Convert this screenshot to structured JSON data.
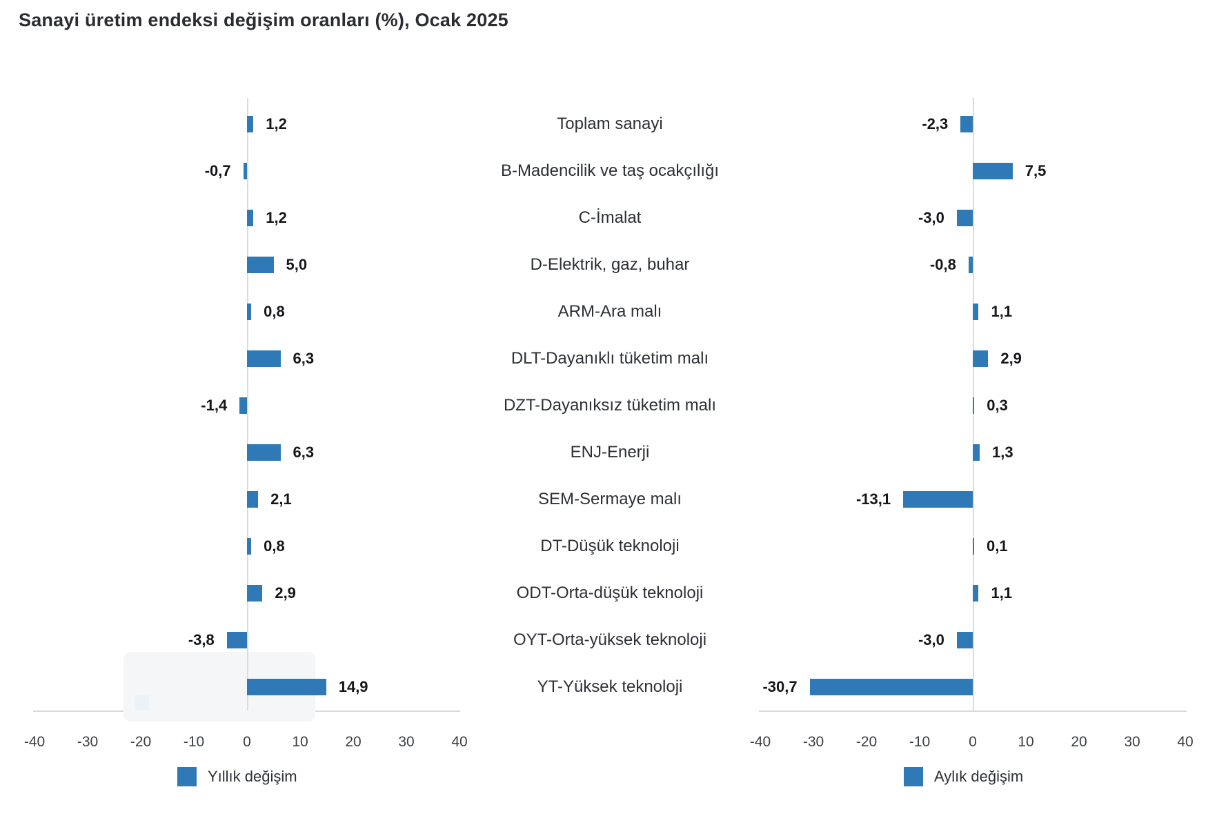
{
  "title": "Sanayi üretim endeksi değişim oranları (%), Ocak 2025",
  "chart_data": {
    "type": "bar",
    "orientation": "horizontal",
    "categories": [
      "Toplam sanayi",
      "B-Madencilik ve taş ocakçılığı",
      "C-İmalat",
      "D-Elektrik, gaz, buhar",
      "ARM-Ara malı",
      "DLT-Dayanıklı tüketim malı",
      "DZT-Dayanıksız tüketim malı",
      "ENJ-Enerji",
      "SEM-Sermaye malı",
      "DT-Düşük teknoloji",
      "ODT-Orta-düşük teknoloji",
      "OYT-Orta-yüksek teknoloji",
      "YT-Yüksek teknoloji"
    ],
    "series": [
      {
        "name": "Yıllık değişim",
        "values": [
          1.2,
          -0.7,
          1.2,
          5.0,
          0.8,
          6.3,
          -1.4,
          6.3,
          2.1,
          0.8,
          2.9,
          -3.8,
          14.9
        ],
        "labels": [
          "1,2",
          "-0,7",
          "1,2",
          "5,0",
          "0,8",
          "6,3",
          "-1,4",
          "6,3",
          "2,1",
          "0,8",
          "2,9",
          "-3,8",
          "14,9"
        ]
      },
      {
        "name": "Aylık değişim",
        "values": [
          -2.3,
          7.5,
          -3.0,
          -0.8,
          1.1,
          2.9,
          0.3,
          1.3,
          -13.1,
          0.1,
          1.1,
          -3.0,
          -30.7
        ],
        "labels": [
          "-2,3",
          "7,5",
          "-3,0",
          "-0,8",
          "1,1",
          "2,9",
          "0,3",
          "1,3",
          "-13,1",
          "0,1",
          "1,1",
          "-3,0",
          "-30,7"
        ]
      }
    ],
    "xlim": [
      -40,
      40
    ],
    "x_ticks": [
      -40,
      -30,
      -20,
      -10,
      0,
      10,
      20,
      30,
      40
    ],
    "x_tick_labels": [
      "-40",
      "-30",
      "-20",
      "-10",
      "0",
      "10",
      "20",
      "30",
      "40"
    ],
    "grid": false,
    "legend_position": "bottom",
    "bar_color": "#2F7AB6",
    "axis_line_color": "#DBDBDB"
  }
}
